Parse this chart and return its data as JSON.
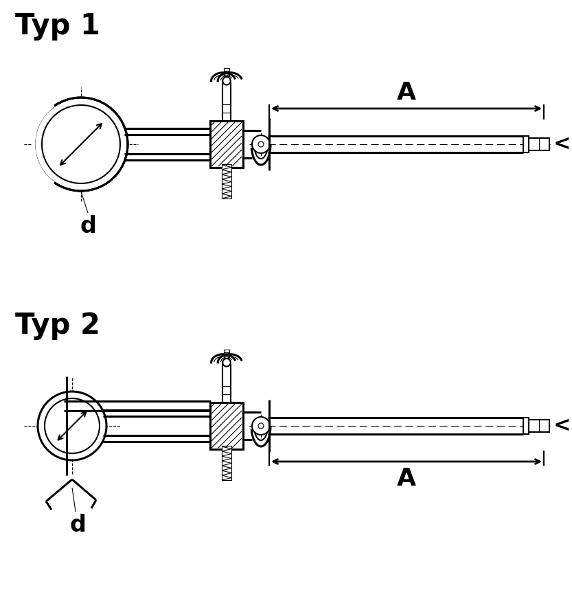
{
  "title1": "Typ 1",
  "title2": "Typ 2",
  "label_A": "A",
  "label_D": "<D",
  "label_d": "d",
  "bg_color": "#ffffff",
  "line_color": "#000000",
  "title_fontsize": 30,
  "label_fontsize": 22,
  "dim_fontsize": 26
}
